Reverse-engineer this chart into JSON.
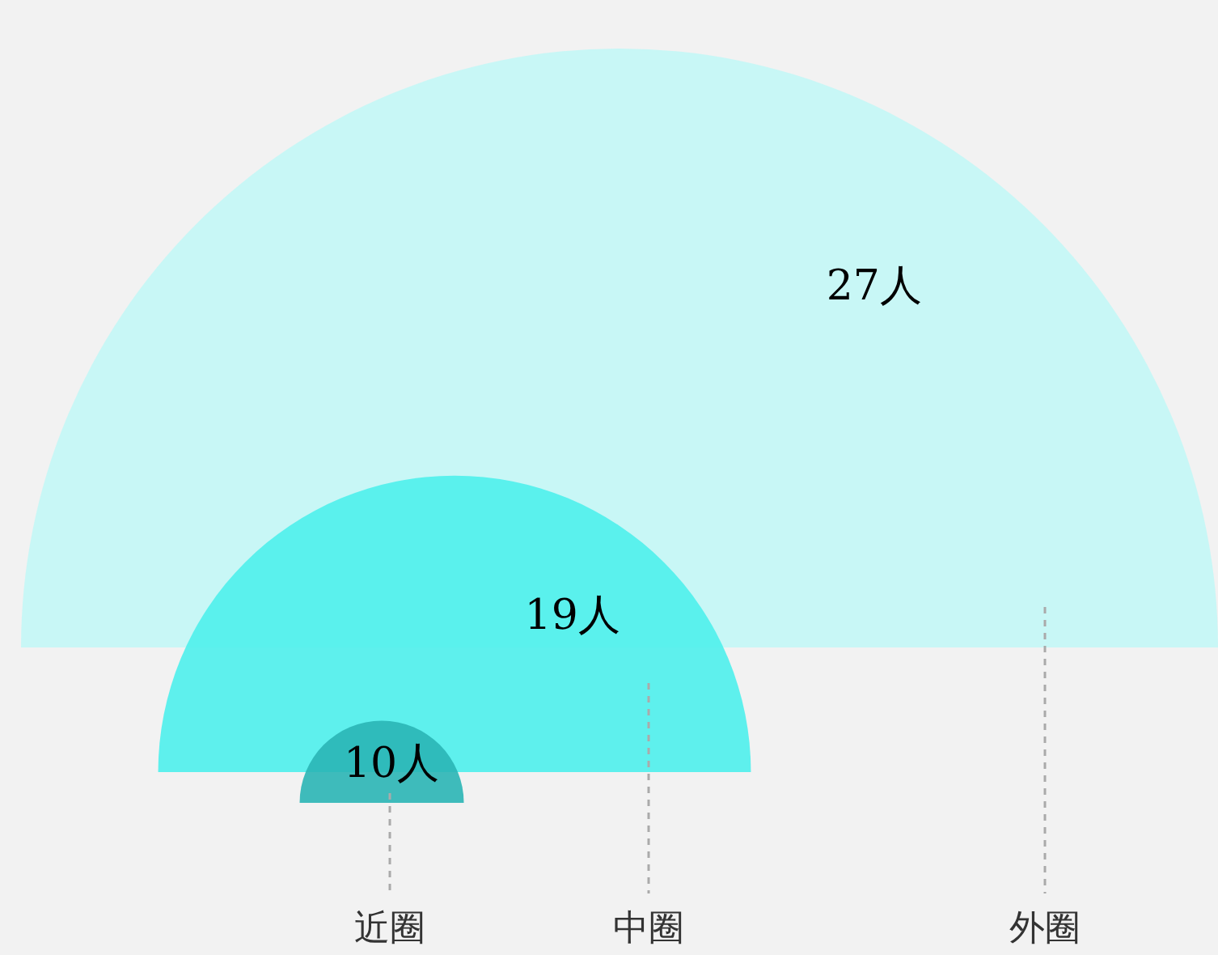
{
  "chart_data": {
    "type": "other",
    "categories": [
      "近圈",
      "中圈",
      "外圈"
    ],
    "values": [
      10,
      19,
      27
    ],
    "colors": [
      "#2ab5b5",
      "#4ef0ec",
      "#c3f7f6"
    ],
    "value_labels": [
      "10人",
      "19人",
      "27人"
    ]
  }
}
